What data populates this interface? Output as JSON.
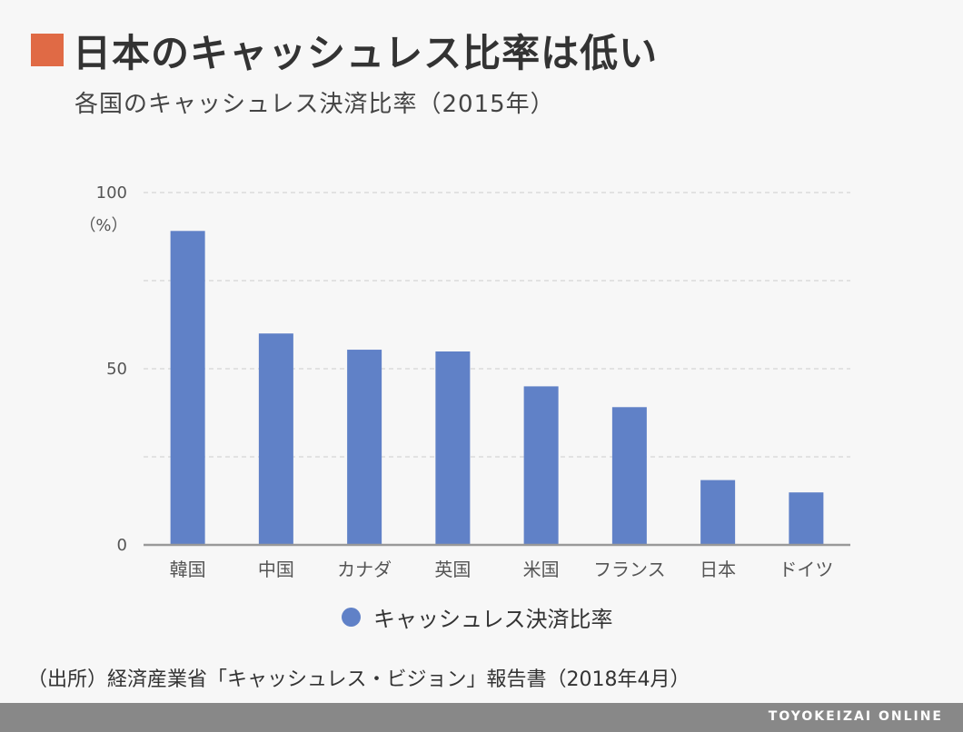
{
  "header": {
    "title": "日本のキャッシュレス比率は低い",
    "subtitle": "各国のキャッシュレス決済比率（2015年）",
    "accent_color": "#e06a45"
  },
  "chart_data": {
    "type": "bar",
    "categories": [
      "韓国",
      "中国",
      "カナダ",
      "英国",
      "米国",
      "フランス",
      "日本",
      "ドイツ"
    ],
    "series": [
      {
        "name": "キャッシュレス決済比率",
        "values": [
          89.1,
          60.0,
          55.4,
          54.9,
          45.0,
          39.1,
          18.4,
          14.9
        ],
        "color": "#6081c7"
      }
    ],
    "ylim": [
      0,
      100
    ],
    "yticks": [
      0,
      50,
      100
    ],
    "ylabel": "（%）",
    "grid": true,
    "legend": "bottom-center"
  },
  "legend": {
    "label": "キャッシュレス決済比率"
  },
  "source": "（出所）経済産業省「キャッシュレス・ビジョン」報告書（2018年4月）",
  "footer": {
    "brand": "TOYOKEIZAI ONLINE"
  }
}
